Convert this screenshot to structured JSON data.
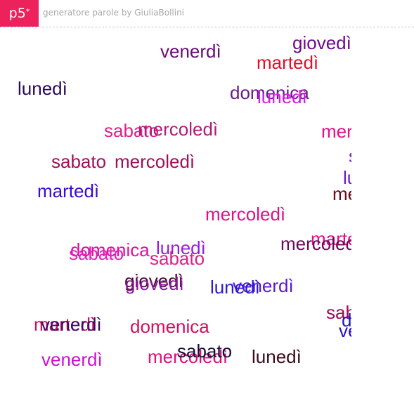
{
  "header": {
    "logo": "p5",
    "logo_mark": "*",
    "title": "generatore parole by GiuliaBollini"
  },
  "words": [
    {
      "text": "giovedì",
      "color": "#6e0a8c"
    },
    {
      "text": "venerdì",
      "color": "#6a0a7a"
    },
    {
      "text": "martedì",
      "color": "#e0102a"
    },
    {
      "text": "lunedì",
      "color": "#2a0a5a"
    },
    {
      "text": "domenica",
      "color": "#6a1a8a"
    },
    {
      "text": "lunedì",
      "color": "#d020e0"
    },
    {
      "text": "sabato",
      "color": "#e0208a"
    },
    {
      "text": "mercoledì",
      "color": "#b01a7a"
    },
    {
      "text": "mercoledì",
      "color": "#e0108a"
    },
    {
      "text": "sabato",
      "color": "#a0105a"
    },
    {
      "text": "mercoledì",
      "color": "#a0105a"
    },
    {
      "text": "sabato",
      "color": "#6a1ad0"
    },
    {
      "text": "martedì",
      "color": "#3a0ad0"
    },
    {
      "text": "lunedì",
      "color": "#6a1ad0"
    },
    {
      "text": "mercoledì",
      "color": "#6a0a1a"
    },
    {
      "text": "mercoledì",
      "color": "#e0108a"
    },
    {
      "text": "martedì",
      "color": "#e0108a"
    },
    {
      "text": "domenica",
      "color": "#e0109a"
    },
    {
      "text": "sabato",
      "color": "#e020c0"
    },
    {
      "text": "lunedì",
      "color": "#9a1ae0"
    },
    {
      "text": "mercoledì",
      "color": "#6a0a5a"
    },
    {
      "text": "sabato",
      "color": "#e0208a"
    },
    {
      "text": "giovedì",
      "color": "#4a0a2a"
    },
    {
      "text": "giovedì",
      "color": "#8a1aa0"
    },
    {
      "text": "venerdì",
      "color": "#5a1ad0"
    },
    {
      "text": "lunedì",
      "color": "#2a1ad0"
    },
    {
      "text": "sabato",
      "color": "#9a0a5a"
    },
    {
      "text": "domenica",
      "color": "#1a1ac0"
    },
    {
      "text": "venerdì",
      "color": "#2a0ad0"
    },
    {
      "text": "martedì",
      "color": "#d0105a"
    },
    {
      "text": "venerdì",
      "color": "#3a0a6a"
    },
    {
      "text": "domenica",
      "color": "#d0105a"
    },
    {
      "text": "venerdì",
      "color": "#d010d0"
    },
    {
      "text": "mercoledì",
      "color": "#e01080"
    },
    {
      "text": "sabato",
      "color": "#1a0a3a"
    },
    {
      "text": "lunedì",
      "color": "#3a0a1a"
    }
  ]
}
